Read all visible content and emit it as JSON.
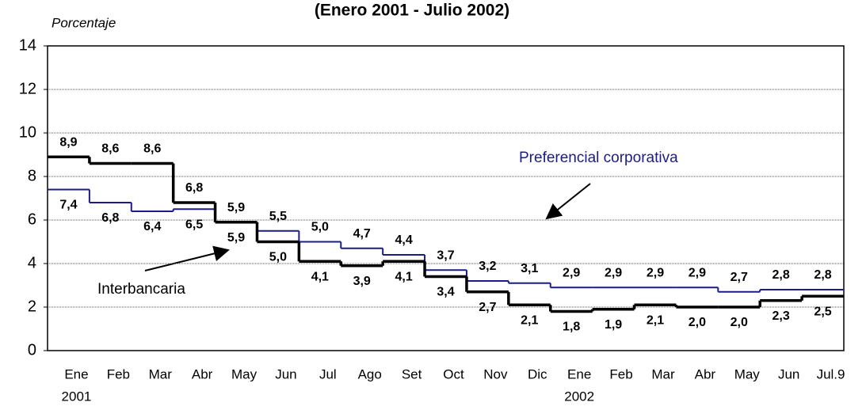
{
  "chart_data": {
    "type": "step",
    "title": "(Enero 2001 - Julio 2002)",
    "y_label": "Porcentaje",
    "categories": [
      "Ene",
      "Feb",
      "Mar",
      "Abr",
      "May",
      "Jun",
      "Jul",
      "Ago",
      "Set",
      "Oct",
      "Nov",
      "Dic",
      "Ene",
      "Feb",
      "Mar",
      "Abr",
      "May",
      "Jun",
      "Jul.9"
    ],
    "category_groups": [
      {
        "label": "2001",
        "start": 0
      },
      {
        "label": "2002",
        "start": 12
      }
    ],
    "series": [
      {
        "name": "Interbancaria",
        "color": "#000000",
        "values": [
          8.9,
          8.6,
          8.6,
          6.8,
          5.9,
          5.0,
          4.1,
          3.9,
          4.1,
          3.4,
          2.7,
          2.1,
          1.8,
          1.9,
          2.1,
          2.0,
          2.0,
          2.3,
          2.5
        ],
        "value_labels": [
          "8,9",
          "8,6",
          "8,6",
          "6,8",
          "5,9",
          "5,0",
          "4,1",
          "3,9",
          "4,1",
          "3,4",
          "2,7",
          "2,1",
          "1,8",
          "1,9",
          "2,1",
          "2,0",
          "2,0",
          "2,3",
          "2,5"
        ]
      },
      {
        "name": "Preferencial corporativa",
        "color": "#1c1c86",
        "values": [
          7.4,
          6.8,
          6.4,
          6.5,
          5.9,
          5.5,
          5.0,
          4.7,
          4.4,
          3.7,
          3.2,
          3.1,
          2.9,
          2.9,
          2.9,
          2.9,
          2.7,
          2.8,
          2.8
        ],
        "value_labels": [
          "7,4",
          "6,8",
          "6,4",
          "6,5",
          "5,9",
          "5,5",
          "5,0",
          "4,7",
          "4,4",
          "3,7",
          "3,2",
          "3,1",
          "2,9",
          "2,9",
          "2,9",
          "2,9",
          "2,7",
          "2,8",
          "2,8"
        ]
      }
    ],
    "ylim": [
      0,
      14
    ],
    "yticks": [
      0,
      2,
      4,
      6,
      8,
      10,
      12,
      14
    ],
    "grid": true
  }
}
